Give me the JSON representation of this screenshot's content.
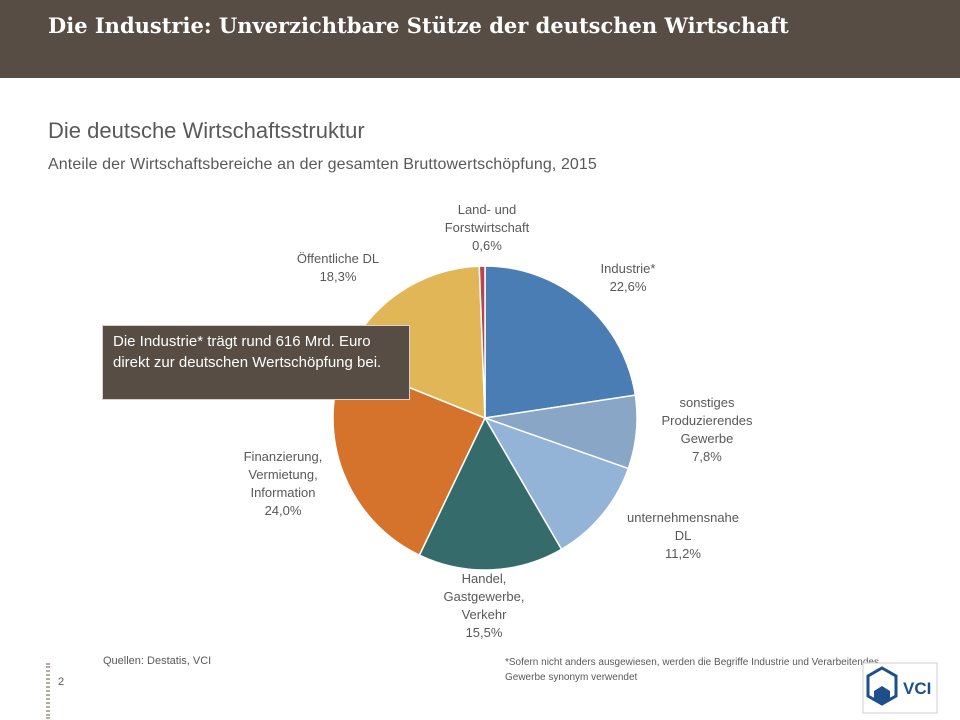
{
  "header": {
    "title": "Die Industrie: Unverzichtbare Stütze der deutschen Wirtschaft"
  },
  "chart_data": {
    "type": "pie",
    "title": "Die deutsche Wirtschaftsstruktur",
    "subtitle": "Anteile der Wirtschaftsbereiche an der gesamten Bruttowertschöpfung, 2015",
    "slices": [
      {
        "label_lines": [
          "Industrie*"
        ],
        "value_label": "22,6%",
        "value": 22.6,
        "color": "#4a7db4"
      },
      {
        "label_lines": [
          "sonstiges",
          "Produzierendes",
          "Gewerbe"
        ],
        "value_label": "7,8%",
        "value": 7.8,
        "color": "#89a6c7"
      },
      {
        "label_lines": [
          "unternehmensnahe",
          "DL"
        ],
        "value_label": "11,2%",
        "value": 11.2,
        "color": "#93b4d6"
      },
      {
        "label_lines": [
          "Handel,",
          "Gastgewerbe,",
          "Verkehr"
        ],
        "value_label": "15,5%",
        "value": 15.5,
        "color": "#356b6b"
      },
      {
        "label_lines": [
          "Finanzierung,",
          "Vermietung,",
          "Information"
        ],
        "value_label": "24,0%",
        "value": 24.0,
        "color": "#d5722b"
      },
      {
        "label_lines": [
          "Öffentliche DL"
        ],
        "value_label": "18,3%",
        "value": 18.3,
        "color": "#e1b656"
      },
      {
        "label_lines": [
          "Land- und",
          "Forstwirtschaft"
        ],
        "value_label": "0,6%",
        "value": 0.6,
        "color": "#b8444f"
      }
    ]
  },
  "callout": {
    "text": "Die Industrie* trägt rund 616 Mrd. Euro direkt zur deutschen Wertschöpfung bei."
  },
  "footer": {
    "sources": "Quellen: Destatis, VCI",
    "footnote": "*Sofern nicht anders ausgewiesen, werden die Begriffe Industrie und Verarbeitendes Gewerbe synonym verwendet",
    "page_number": "2",
    "logo_text": "VCI"
  }
}
